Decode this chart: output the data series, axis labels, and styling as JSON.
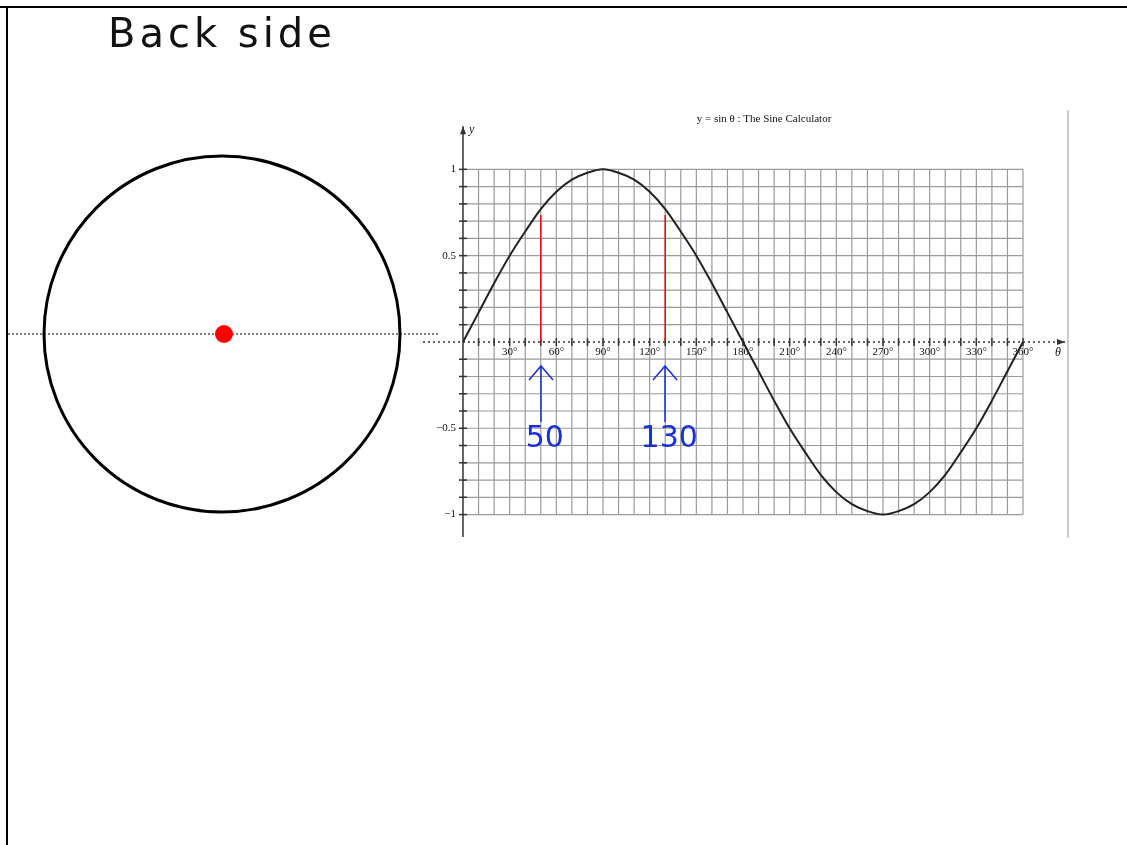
{
  "chart_data": {
    "type": "line",
    "title": "y = sin θ : The Sine Calculator",
    "xlabel": "θ",
    "ylabel": "y",
    "annotations": [
      "Back side"
    ],
    "x": [
      0,
      10,
      20,
      30,
      40,
      50,
      60,
      70,
      80,
      90,
      100,
      110,
      120,
      130,
      140,
      150,
      160,
      170,
      180,
      190,
      200,
      210,
      220,
      230,
      240,
      250,
      260,
      270,
      280,
      290,
      300,
      310,
      320,
      330,
      340,
      350,
      360
    ],
    "series": [
      {
        "color": "#222222",
        "values": [
          0,
          0.17,
          0.34,
          0.5,
          0.64,
          0.77,
          0.87,
          0.94,
          0.98,
          1,
          0.98,
          0.94,
          0.87,
          0.77,
          0.64,
          0.5,
          0.34,
          0.17,
          0,
          -0.17,
          -0.34,
          -0.5,
          -0.64,
          -0.77,
          -0.87,
          -0.94,
          -0.98,
          -1,
          -0.98,
          -0.94,
          -0.87,
          -0.77,
          -0.64,
          -0.5,
          -0.34,
          -0.17,
          0
        ]
      }
    ],
    "xlim": [
      0,
      387
    ],
    "ylim": [
      -1.13,
      1.25
    ],
    "xticks": [
      {
        "value": 10,
        "label": null
      },
      {
        "value": 20,
        "label": null
      },
      {
        "value": 30,
        "label": "30°"
      },
      {
        "value": 40,
        "label": null
      },
      {
        "value": 50,
        "label": null
      },
      {
        "value": 60,
        "label": "60°"
      },
      {
        "value": 70,
        "label": null
      },
      {
        "value": 80,
        "label": null
      },
      {
        "value": 90,
        "label": "90°"
      },
      {
        "value": 100,
        "label": null
      },
      {
        "value": 110,
        "label": null
      },
      {
        "value": 120,
        "label": "120°"
      },
      {
        "value": 130,
        "label": null
      },
      {
        "value": 140,
        "label": null
      },
      {
        "value": 150,
        "label": "150°"
      },
      {
        "value": 160,
        "label": null
      },
      {
        "value": 170,
        "label": null
      },
      {
        "value": 180,
        "label": "180°"
      },
      {
        "value": 190,
        "label": null
      },
      {
        "value": 200,
        "label": null
      },
      {
        "value": 210,
        "label": "210°"
      },
      {
        "value": 220,
        "label": null
      },
      {
        "value": 230,
        "label": null
      },
      {
        "value": 240,
        "label": "240°"
      },
      {
        "value": 250,
        "label": null
      },
      {
        "value": 260,
        "label": null
      },
      {
        "value": 270,
        "label": "270°"
      },
      {
        "value": 280,
        "label": null
      },
      {
        "value": 290,
        "label": null
      },
      {
        "value": 300,
        "label": "300°"
      },
      {
        "value": 310,
        "label": null
      },
      {
        "value": 320,
        "label": null
      },
      {
        "value": 330,
        "label": "330°"
      },
      {
        "value": 340,
        "label": null
      },
      {
        "value": 350,
        "label": null
      },
      {
        "value": 360,
        "label": "360°"
      }
    ],
    "yticks": [
      -1,
      {
        "value": -0.9,
        "label": null
      },
      {
        "value": -0.8,
        "label": null
      },
      {
        "value": -0.7,
        "label": null
      },
      {
        "value": -0.6,
        "label": null
      },
      -0.5,
      {
        "value": -0.4,
        "label": null
      },
      {
        "value": -0.3,
        "label": null
      },
      {
        "value": -0.2,
        "label": null
      },
      {
        "value": -0.1,
        "label": null
      },
      {
        "value": 0.1,
        "label": null
      },
      {
        "value": 0.2,
        "label": null
      },
      {
        "value": 0.3,
        "label": null
      },
      {
        "value": 0.4,
        "label": null
      },
      0.5,
      {
        "value": 0.6,
        "label": null
      },
      {
        "value": 0.7,
        "label": null
      },
      {
        "value": 0.8,
        "label": null
      },
      {
        "value": 0.9,
        "label": null
      },
      1
    ],
    "ref_lines": [
      {
        "axis": "y",
        "value": 0,
        "color": "#333333",
        "line_style": "dotted"
      },
      {
        "axis": "x",
        "value": 50,
        "label": "50",
        "color": "#ff0000"
      },
      {
        "axis": "x",
        "value": 130,
        "label": "130",
        "color": "#ff0000"
      }
    ],
    "grid": true,
    "legend": false,
    "marker": "none",
    "line_style": "solid"
  }
}
